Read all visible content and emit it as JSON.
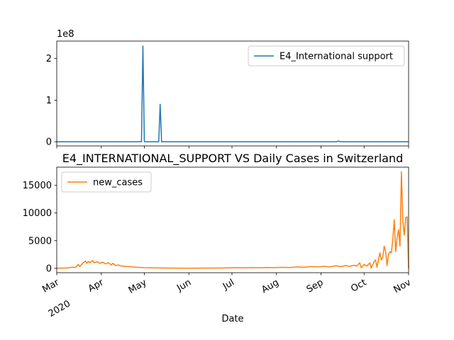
{
  "figure": {
    "exponent_label": "1e8",
    "subplot2_title": "E4_INTERNATIONAL_SUPPORT VS Daily Cases in Switzerland",
    "xlabel": "Date"
  },
  "chart_data": [
    {
      "type": "line",
      "title": "",
      "xlabel": "",
      "ylabel": "",
      "x_range": [
        "2020-03-01",
        "2020-11-01"
      ],
      "ylim": [
        -0.1,
        2.42
      ],
      "y_unit_multiplier": "1e8",
      "y_ticks": [
        {
          "v": 0,
          "label": "0"
        },
        {
          "v": 1,
          "label": "1"
        },
        {
          "v": 2,
          "label": "2"
        }
      ],
      "legend_position": "upper right",
      "series": [
        {
          "name": "E4_International support",
          "color": "#1f77b4",
          "points": [
            [
              "2020-03-01",
              0
            ],
            [
              "2020-04-29",
              0
            ],
            [
              "2020-04-30",
              2.3
            ],
            [
              "2020-05-01",
              0
            ],
            [
              "2020-05-11",
              0
            ],
            [
              "2020-05-12",
              0.9
            ],
            [
              "2020-05-13",
              0
            ],
            [
              "2020-09-12",
              0
            ],
            [
              "2020-09-13",
              0.02
            ],
            [
              "2020-09-14",
              0
            ],
            [
              "2020-11-01",
              0
            ]
          ]
        }
      ]
    },
    {
      "type": "line",
      "title": "E4_INTERNATIONAL_SUPPORT VS Daily Cases in Switzerland",
      "xlabel": "Date",
      "ylabel": "",
      "x_range": [
        "2020-03-01",
        "2020-11-01"
      ],
      "ylim": [
        -800,
        18300
      ],
      "y_ticks": [
        {
          "v": 0,
          "label": "0"
        },
        {
          "v": 5000,
          "label": "5000"
        },
        {
          "v": 10000,
          "label": "10000"
        },
        {
          "v": 15000,
          "label": "15000"
        }
      ],
      "legend_position": "upper left",
      "x_ticks": [
        {
          "date": "2020-03-01",
          "label": "Mar",
          "sublabel": "2020"
        },
        {
          "date": "2020-04-01",
          "label": "Apr"
        },
        {
          "date": "2020-05-01",
          "label": "May"
        },
        {
          "date": "2020-06-01",
          "label": "Jun"
        },
        {
          "date": "2020-07-01",
          "label": "Jul"
        },
        {
          "date": "2020-08-01",
          "label": "Aug"
        },
        {
          "date": "2020-09-01",
          "label": "Sep"
        },
        {
          "date": "2020-10-01",
          "label": "Oct"
        },
        {
          "date": "2020-11-01",
          "label": "Nov"
        }
      ],
      "series": [
        {
          "name": "new_cases",
          "color": "#ff7f0e",
          "points": [
            [
              "2020-03-01",
              10
            ],
            [
              "2020-03-08",
              50
            ],
            [
              "2020-03-12",
              200
            ],
            [
              "2020-03-14",
              150
            ],
            [
              "2020-03-16",
              700
            ],
            [
              "2020-03-17",
              300
            ],
            [
              "2020-03-19",
              900
            ],
            [
              "2020-03-20",
              1100
            ],
            [
              "2020-03-21",
              1300
            ],
            [
              "2020-03-22",
              900
            ],
            [
              "2020-03-23",
              1250
            ],
            [
              "2020-03-24",
              1000
            ],
            [
              "2020-03-26",
              1400
            ],
            [
              "2020-03-27",
              1000
            ],
            [
              "2020-03-29",
              1200
            ],
            [
              "2020-03-31",
              900
            ],
            [
              "2020-04-02",
              1100
            ],
            [
              "2020-04-04",
              800
            ],
            [
              "2020-04-06",
              1000
            ],
            [
              "2020-04-08",
              600
            ],
            [
              "2020-04-09",
              900
            ],
            [
              "2020-04-11",
              500
            ],
            [
              "2020-04-13",
              600
            ],
            [
              "2020-04-15",
              400
            ],
            [
              "2020-04-20",
              300
            ],
            [
              "2020-04-25",
              200
            ],
            [
              "2020-05-01",
              120
            ],
            [
              "2020-05-10",
              60
            ],
            [
              "2020-05-20",
              30
            ],
            [
              "2020-06-01",
              20
            ],
            [
              "2020-06-15",
              30
            ],
            [
              "2020-06-25",
              50
            ],
            [
              "2020-07-01",
              90
            ],
            [
              "2020-07-05",
              120
            ],
            [
              "2020-07-10",
              80
            ],
            [
              "2020-07-15",
              130
            ],
            [
              "2020-07-20",
              100
            ],
            [
              "2020-07-25",
              150
            ],
            [
              "2020-07-30",
              120
            ],
            [
              "2020-08-05",
              180
            ],
            [
              "2020-08-10",
              130
            ],
            [
              "2020-08-15",
              250
            ],
            [
              "2020-08-20",
              200
            ],
            [
              "2020-08-25",
              300
            ],
            [
              "2020-08-30",
              250
            ],
            [
              "2020-09-03",
              350
            ],
            [
              "2020-09-07",
              250
            ],
            [
              "2020-09-11",
              450
            ],
            [
              "2020-09-15",
              300
            ],
            [
              "2020-09-18",
              500
            ],
            [
              "2020-09-21",
              350
            ],
            [
              "2020-09-24",
              550
            ],
            [
              "2020-09-26",
              400
            ],
            [
              "2020-09-28",
              1000
            ],
            [
              "2020-09-29",
              100
            ],
            [
              "2020-10-01",
              700
            ],
            [
              "2020-10-03",
              400
            ],
            [
              "2020-10-05",
              1000
            ],
            [
              "2020-10-06",
              50
            ],
            [
              "2020-10-08",
              1200
            ],
            [
              "2020-10-09",
              1500
            ],
            [
              "2020-10-10",
              200
            ],
            [
              "2020-10-12",
              2800
            ],
            [
              "2020-10-13",
              1500
            ],
            [
              "2020-10-14",
              2000
            ],
            [
              "2020-10-15",
              4000
            ],
            [
              "2020-10-16",
              3000
            ],
            [
              "2020-10-17",
              500
            ],
            [
              "2020-10-18",
              2500
            ],
            [
              "2020-10-19",
              3000
            ],
            [
              "2020-10-20",
              2800
            ],
            [
              "2020-10-21",
              5200
            ],
            [
              "2020-10-22",
              8800
            ],
            [
              "2020-10-23",
              3000
            ],
            [
              "2020-10-24",
              5500
            ],
            [
              "2020-10-25",
              7000
            ],
            [
              "2020-10-26",
              4000
            ],
            [
              "2020-10-27",
              17500
            ],
            [
              "2020-10-28",
              8500
            ],
            [
              "2020-10-29",
              6000
            ],
            [
              "2020-10-30",
              9200
            ],
            [
              "2020-10-31",
              9300
            ],
            [
              "2020-11-01",
              0
            ]
          ]
        }
      ]
    }
  ]
}
